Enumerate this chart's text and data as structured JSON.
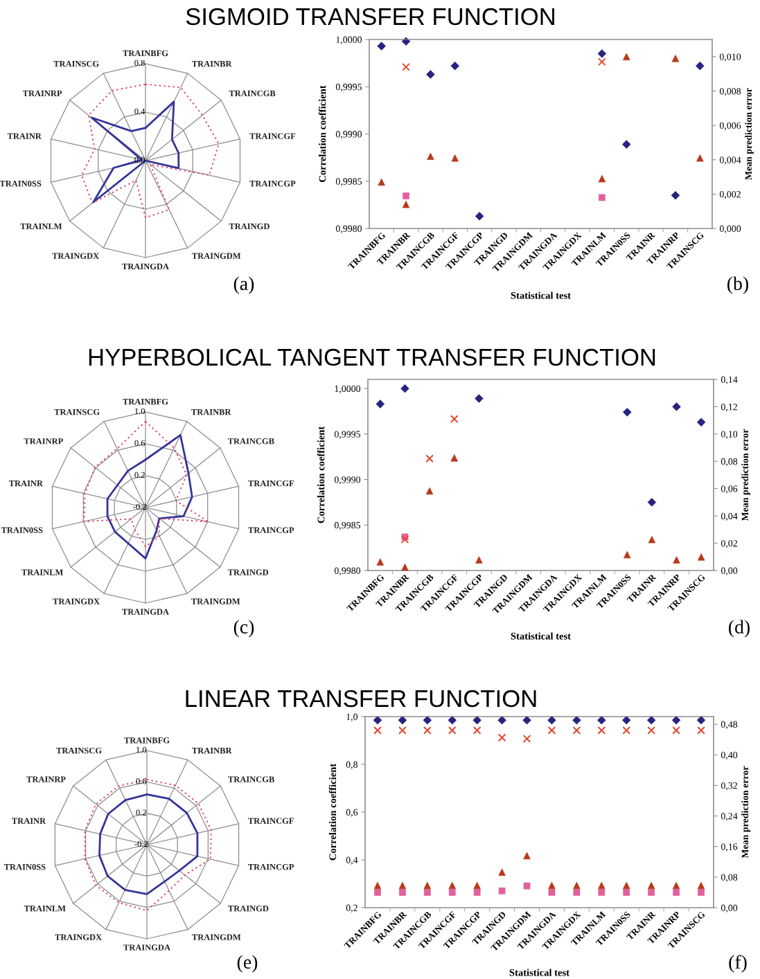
{
  "chart_data": [
    {
      "type": "radar",
      "title": "SIGMOID TRANSFER FUNCTION",
      "annotations": [
        "(a)"
      ],
      "categories": [
        "TRAINBFG",
        "TRAINBR",
        "TRAINCGB",
        "TRAINCGF",
        "TRAINCGP",
        "TRAINGD",
        "TRAINGDM",
        "TRAINGDA",
        "TRAINGDX",
        "TRAINLM",
        "TRAIN0SS",
        "TRAINR",
        "TRAINRP",
        "TRAINSCG"
      ],
      "ylim": [
        0.0,
        0.8
      ],
      "yticks": [
        {
          "value": 0.0,
          "label": "0.0"
        },
        {
          "value": 0.4,
          "label": "0.4"
        },
        {
          "value": 0.8,
          "label": "0.8"
        }
      ],
      "series": [
        {
          "color": "#333399",
          "line_style": "solid",
          "values": [
            0.27,
            0.54,
            0.28,
            0.28,
            0.28,
            0.0,
            0.0,
            0.0,
            0.0,
            0.55,
            0.27,
            0.03,
            0.57,
            0.27
          ]
        },
        {
          "color": "#e0406a",
          "line_style": "dotted",
          "values": [
            0.63,
            0.67,
            0.6,
            0.62,
            0.54,
            0.05,
            0.45,
            0.47,
            0.18,
            0.56,
            0.54,
            0.43,
            0.6,
            0.64
          ]
        }
      ]
    },
    {
      "type": "scatter",
      "annotations": [
        "(b)"
      ],
      "xlabel": "Statistical test",
      "ylabel": "Correlation coefficient",
      "y2label": "Mean prediction error",
      "categories": [
        "TRAINBFG",
        "TRAINBR",
        "TRAINCGB",
        "TRAINCGF",
        "TRAINCGP",
        "TRAINGD",
        "TRAINGDM",
        "TRAINGDA",
        "TRAINGDX",
        "TRAINLM",
        "TRAIN0SS",
        "TRAINR",
        "TRAINRP",
        "TRAINSCG"
      ],
      "ylim": [
        0.998,
        1.0
      ],
      "yticks": [
        {
          "value": 0.998,
          "label": "0,9980"
        },
        {
          "value": 0.9985,
          "label": "0,9985"
        },
        {
          "value": 0.999,
          "label": "0,9990"
        },
        {
          "value": 0.9995,
          "label": "0,9995"
        },
        {
          "value": 1.0,
          "label": "1,0000"
        }
      ],
      "y2lim": [
        0.0,
        0.011
      ],
      "y2ticks": [
        {
          "value": 0.0,
          "label": "0,000"
        },
        {
          "value": 0.002,
          "label": "0,002"
        },
        {
          "value": 0.004,
          "label": "0,004"
        },
        {
          "value": 0.006,
          "label": "0,006"
        },
        {
          "value": 0.008,
          "label": "0,008"
        },
        {
          "value": 0.01,
          "label": "0,010"
        }
      ],
      "series": [
        {
          "color": "#27237f",
          "marker": "diamond",
          "values": [
            0.99993,
            0.99998,
            0.99963,
            0.99972,
            0.99813,
            null,
            null,
            null,
            null,
            0.99985,
            0.99889,
            null,
            0.99835,
            0.99972
          ]
        },
        {
          "color": "#e2609e",
          "marker": "square",
          "axis": "y2",
          "values": [
            null,
            0.0019,
            null,
            null,
            null,
            null,
            null,
            null,
            null,
            0.0018,
            null,
            null,
            null,
            null
          ]
        },
        {
          "color": "#e0452b",
          "marker": "cross",
          "axis": "y2",
          "values": [
            null,
            0.0094,
            null,
            null,
            null,
            null,
            null,
            null,
            null,
            0.0097,
            null,
            null,
            null,
            null
          ]
        },
        {
          "color": "#b8391c",
          "marker": "triangle",
          "axis": "y2",
          "values": [
            0.0027,
            0.0014,
            0.0042,
            0.0041,
            null,
            null,
            null,
            null,
            null,
            0.0029,
            0.01,
            null,
            0.0099,
            0.0041
          ]
        }
      ]
    },
    {
      "type": "radar",
      "title": "HYPERBOLICAL TANGENT TRANSFER FUNCTION",
      "annotations": [
        "(c)"
      ],
      "categories": [
        "TRAINBFG",
        "TRAINBR",
        "TRAINCGB",
        "TRAINCGF",
        "TRAINCGP",
        "TRAINGD",
        "TRAINGDM",
        "TRAINGDA",
        "TRAINGDX",
        "TRAINLM",
        "TRAIN0SS",
        "TRAINR",
        "TRAINRP",
        "TRAINSCG"
      ],
      "ylim": [
        -0.2,
        1.0
      ],
      "yticks": [
        {
          "value": -0.2,
          "label": "-0.2"
        },
        {
          "value": 0.2,
          "label": "0.2"
        },
        {
          "value": 0.6,
          "label": "0.6"
        },
        {
          "value": 1.0,
          "label": "1.0"
        }
      ],
      "series": [
        {
          "color": "#333399",
          "line_style": "solid",
          "values": [
            0.4,
            0.81,
            0.49,
            0.4,
            0.29,
            0.02,
            0.12,
            0.44,
            0.3,
            0.29,
            0.29,
            0.29,
            0.25,
            0.31
          ]
        },
        {
          "color": "#e0406a",
          "line_style": "dotted",
          "values": [
            0.88,
            0.63,
            0.46,
            0.19,
            0.61,
            0.02,
            0.2,
            0.29,
            0.11,
            0.03,
            0.59,
            0.58,
            0.61,
            0.62
          ]
        }
      ]
    },
    {
      "type": "scatter",
      "annotations": [
        "(d)"
      ],
      "xlabel": "Statistical test",
      "ylabel": "Correlation coefficient",
      "y2label": "Mean prediction error",
      "categories": [
        "TRAINBFG",
        "TRAINBR",
        "TRAINCGB",
        "TRAINCGF",
        "TRAINCGP",
        "TRAINGD",
        "TRAINGDM",
        "TRAINGDA",
        "TRAINGDX",
        "TRAINLM",
        "TRAIN0SS",
        "TRAINR",
        "TRAINRP",
        "TRAINSCG"
      ],
      "ylim": [
        0.998,
        1.0001
      ],
      "yticks": [
        {
          "value": 0.998,
          "label": "0,9980"
        },
        {
          "value": 0.9985,
          "label": "0,9985"
        },
        {
          "value": 0.999,
          "label": "0,9990"
        },
        {
          "value": 0.9995,
          "label": "0,9995"
        },
        {
          "value": 1.0,
          "label": "1,0000"
        }
      ],
      "y2lim": [
        0.0,
        0.14
      ],
      "y2ticks": [
        {
          "value": 0.0,
          "label": "0,00"
        },
        {
          "value": 0.02,
          "label": "0,02"
        },
        {
          "value": 0.04,
          "label": "0,04"
        },
        {
          "value": 0.06,
          "label": "0,06"
        },
        {
          "value": 0.08,
          "label": "0,08"
        },
        {
          "value": 0.1,
          "label": "0,10"
        },
        {
          "value": 0.12,
          "label": "0,12"
        },
        {
          "value": 0.14,
          "label": "0,14"
        }
      ],
      "series": [
        {
          "color": "#27237f",
          "marker": "diamond",
          "values": [
            0.99983,
            1.0,
            null,
            null,
            0.99989,
            null,
            null,
            null,
            null,
            null,
            0.99974,
            0.99875,
            0.9998,
            0.99963
          ]
        },
        {
          "color": "#e2609e",
          "marker": "square",
          "axis": "y2",
          "values": [
            null,
            0.0246,
            null,
            null,
            null,
            null,
            null,
            null,
            null,
            null,
            null,
            null,
            null,
            null
          ]
        },
        {
          "color": "#e0452b",
          "marker": "cross",
          "axis": "y2",
          "values": [
            null,
            0.0227,
            0.082,
            0.111,
            null,
            null,
            null,
            null,
            null,
            null,
            null,
            null,
            null,
            null
          ]
        },
        {
          "color": "#b8391c",
          "marker": "triangle",
          "axis": "y2",
          "values": [
            0.0063,
            0.0025,
            0.0583,
            0.0825,
            0.0078,
            null,
            null,
            null,
            null,
            null,
            0.0116,
            0.0227,
            0.0078,
            0.0099
          ]
        }
      ]
    },
    {
      "type": "radar",
      "title": "LINEAR TRANSFER FUNCTION",
      "annotations": [
        "(e)"
      ],
      "categories": [
        "TRAINBFG",
        "TRAINBR",
        "TRAINCGB",
        "TRAINCGF",
        "TRAINCGP",
        "TRAINGD",
        "TRAINGDM",
        "TRAINGDA",
        "TRAINGDX",
        "TRAINLM",
        "TRAIN0SS",
        "TRAINR",
        "TRAINRP",
        "TRAINSCG"
      ],
      "ylim": [
        -0.2,
        1.0
      ],
      "yticks": [
        {
          "value": -0.2,
          "label": "-0.2"
        },
        {
          "value": 0.2,
          "label": "0.2"
        },
        {
          "value": 0.6,
          "label": "0.6"
        },
        {
          "value": 1.0,
          "label": "1.0"
        }
      ],
      "series": [
        {
          "color": "#333399",
          "line_style": "solid",
          "values": [
            0.44,
            0.45,
            0.45,
            0.46,
            0.46,
            0.33,
            0.32,
            0.43,
            0.44,
            0.44,
            0.42,
            0.41,
            0.43,
            0.43
          ]
        },
        {
          "color": "#e0406a",
          "line_style": "dotted",
          "values": [
            0.63,
            0.64,
            0.64,
            0.64,
            0.63,
            0.42,
            0.45,
            0.64,
            0.62,
            0.63,
            0.61,
            0.61,
            0.63,
            0.63
          ]
        }
      ]
    },
    {
      "type": "scatter",
      "annotations": [
        "(f)"
      ],
      "xlabel": "Statistical test",
      "ylabel": "Correlation coefficient",
      "y2label": "Mean prediction error",
      "categories": [
        "TRAINBFG",
        "TRAINBR",
        "TRAINCGB",
        "TRAINCGF",
        "TRAINCGP",
        "TRAINGD",
        "TRAINGDM",
        "TRAINGDA",
        "TRAINGDX",
        "TRAINLM",
        "TRAIN0SS",
        "TRAINR",
        "TRAINRP",
        "TRAINSCG"
      ],
      "ylim": [
        0.2,
        1.0
      ],
      "yticks": [
        {
          "value": 0.2,
          "label": "0,2"
        },
        {
          "value": 0.4,
          "label": "0,4"
        },
        {
          "value": 0.6,
          "label": "0,6"
        },
        {
          "value": 0.8,
          "label": "0,8"
        },
        {
          "value": 1.0,
          "label": "1,0"
        }
      ],
      "y2lim": [
        0.0,
        0.5
      ],
      "y2ticks": [
        {
          "value": 0.0,
          "label": "0,00"
        },
        {
          "value": 0.08,
          "label": "0,08"
        },
        {
          "value": 0.16,
          "label": "0,16"
        },
        {
          "value": 0.24,
          "label": "0,24"
        },
        {
          "value": 0.32,
          "label": "0,32"
        },
        {
          "value": 0.4,
          "label": "0,40"
        },
        {
          "value": 0.48,
          "label": "0,48"
        }
      ],
      "series": [
        {
          "color": "#27237f",
          "marker": "diamond",
          "values": [
            0.985,
            0.985,
            0.985,
            0.985,
            0.985,
            0.985,
            0.985,
            0.985,
            0.985,
            0.985,
            0.985,
            0.985,
            0.985,
            0.985
          ]
        },
        {
          "color": "#e2609e",
          "marker": "square",
          "axis": "y2",
          "values": [
            0.04,
            0.04,
            0.04,
            0.04,
            0.04,
            0.044,
            0.057,
            0.04,
            0.04,
            0.04,
            0.04,
            0.04,
            0.04,
            0.04
          ]
        },
        {
          "color": "#e0452b",
          "marker": "cross",
          "axis": "y2",
          "values": [
            0.464,
            0.464,
            0.464,
            0.464,
            0.464,
            0.445,
            0.442,
            0.464,
            0.464,
            0.464,
            0.464,
            0.464,
            0.464,
            0.464
          ]
        },
        {
          "color": "#b8391c",
          "marker": "triangle",
          "axis": "y2",
          "values": [
            0.058,
            0.058,
            0.058,
            0.058,
            0.058,
            0.093,
            0.136,
            0.058,
            0.058,
            0.058,
            0.058,
            0.058,
            0.058,
            0.058
          ]
        }
      ]
    }
  ]
}
